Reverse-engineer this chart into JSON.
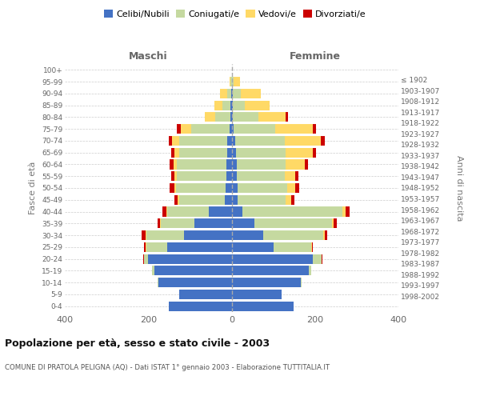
{
  "age_groups": [
    "0-4",
    "5-9",
    "10-14",
    "15-19",
    "20-24",
    "25-29",
    "30-34",
    "35-39",
    "40-44",
    "45-49",
    "50-54",
    "55-59",
    "60-64",
    "65-69",
    "70-74",
    "75-79",
    "80-84",
    "85-89",
    "90-94",
    "95-99",
    "100+"
  ],
  "birth_years": [
    "1998-2002",
    "1993-1997",
    "1988-1992",
    "1983-1987",
    "1978-1982",
    "1973-1977",
    "1968-1972",
    "1963-1967",
    "1958-1962",
    "1953-1957",
    "1948-1952",
    "1943-1947",
    "1938-1942",
    "1933-1937",
    "1928-1932",
    "1923-1927",
    "1918-1922",
    "1913-1917",
    "1908-1912",
    "1903-1907",
    "≤ 1902"
  ],
  "maschi": {
    "celibi": [
      150,
      125,
      175,
      185,
      200,
      155,
      115,
      90,
      55,
      16,
      14,
      12,
      12,
      10,
      10,
      5,
      2,
      2,
      1,
      0,
      0
    ],
    "coniugati": [
      0,
      0,
      2,
      5,
      10,
      50,
      90,
      80,
      100,
      110,
      120,
      120,
      120,
      115,
      115,
      92,
      38,
      20,
      10,
      2,
      0
    ],
    "vedovi": [
      0,
      0,
      0,
      0,
      0,
      2,
      2,
      2,
      2,
      3,
      4,
      5,
      8,
      12,
      18,
      25,
      25,
      20,
      16,
      2,
      0
    ],
    "divorziati": [
      0,
      0,
      0,
      0,
      2,
      3,
      8,
      5,
      8,
      8,
      10,
      8,
      8,
      8,
      8,
      9,
      0,
      0,
      0,
      0,
      0
    ]
  },
  "femmine": {
    "nubili": [
      148,
      120,
      165,
      185,
      195,
      100,
      75,
      55,
      25,
      15,
      14,
      12,
      12,
      10,
      8,
      5,
      2,
      2,
      2,
      0,
      0
    ],
    "coniugate": [
      0,
      0,
      2,
      5,
      20,
      90,
      145,
      185,
      240,
      115,
      120,
      115,
      118,
      120,
      120,
      100,
      62,
      30,
      20,
      5,
      0
    ],
    "vedove": [
      0,
      0,
      0,
      0,
      0,
      2,
      4,
      5,
      8,
      12,
      18,
      25,
      45,
      65,
      85,
      90,
      65,
      60,
      48,
      16,
      0
    ],
    "divorziate": [
      0,
      0,
      0,
      0,
      2,
      3,
      5,
      8,
      10,
      8,
      10,
      8,
      8,
      8,
      10,
      8,
      6,
      0,
      0,
      0,
      0
    ]
  },
  "colors": {
    "celibi_nubili": "#4472C4",
    "coniugati": "#C5D9A0",
    "vedovi": "#FFD966",
    "divorziati": "#CC0000"
  },
  "xlim": 400,
  "title": "Popolazione per età, sesso e stato civile - 2003",
  "subtitle": "COMUNE DI PRATOLA PELIGNA (AQ) - Dati ISTAT 1° gennaio 2003 - Elaborazione TUTTITALIA.IT",
  "ylabel_left": "Fasce di età",
  "ylabel_right": "Anni di nascita",
  "label_maschi": "Maschi",
  "label_femmine": "Femmine",
  "legend_labels": [
    "Celibi/Nubili",
    "Coniugati/e",
    "Vedovi/e",
    "Divorziati/e"
  ],
  "background_color": "#ffffff",
  "grid_color": "#cccccc"
}
